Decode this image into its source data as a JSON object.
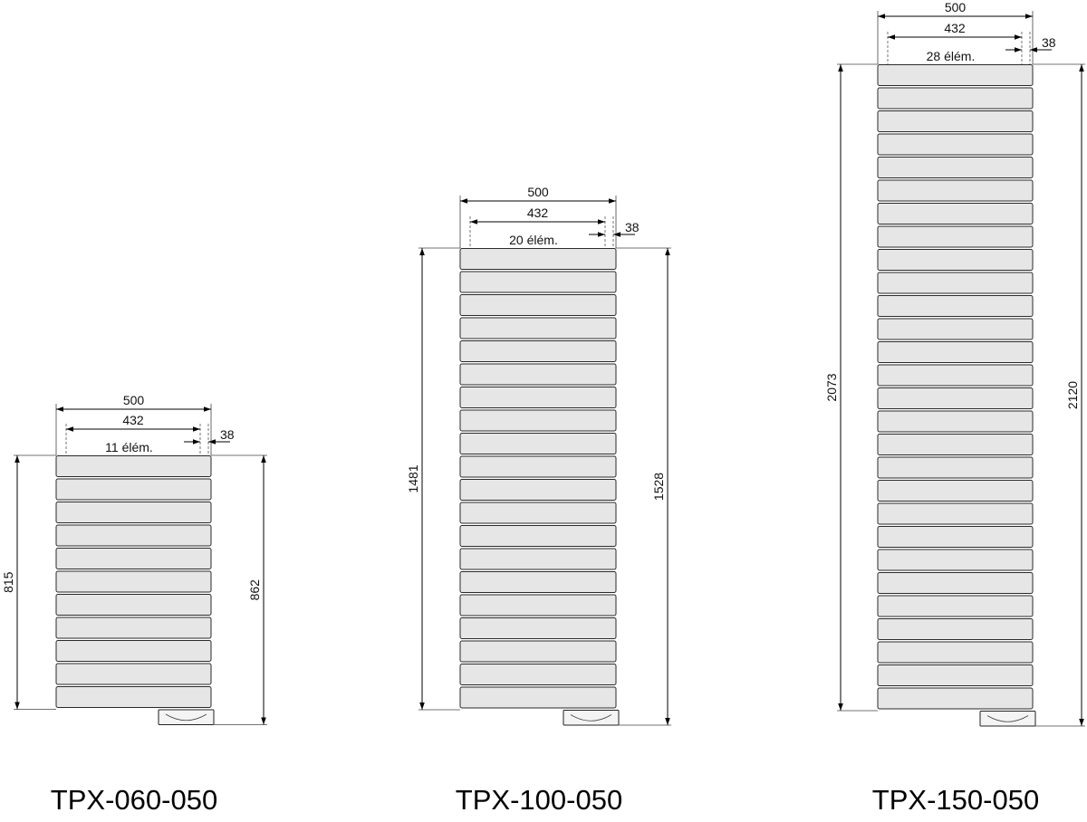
{
  "radiators": [
    {
      "model": "TPX-060-050",
      "elements": 11,
      "elements_label": "11 élém.",
      "width_total": "500",
      "width_inner": "432",
      "offset": "38",
      "height_body": "815",
      "height_total": "862"
    },
    {
      "model": "TPX-100-050",
      "elements": 20,
      "elements_label": "20 élém.",
      "width_total": "500",
      "width_inner": "432",
      "offset": "38",
      "height_body": "1481",
      "height_total": "1528"
    },
    {
      "model": "TPX-150-050",
      "elements": 28,
      "elements_label": "28 élém.",
      "width_total": "500",
      "width_inner": "432",
      "offset": "38",
      "height_body": "2073",
      "height_total": "2120"
    }
  ]
}
